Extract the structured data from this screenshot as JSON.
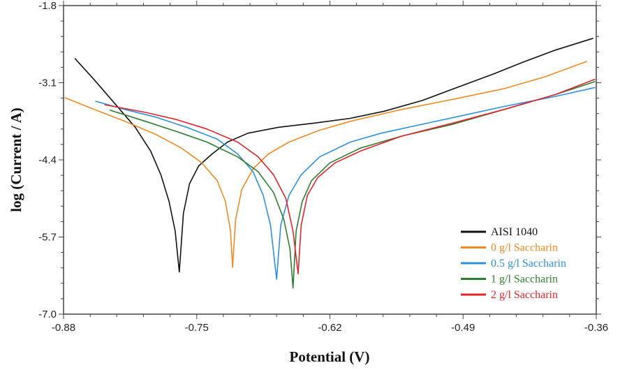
{
  "chart_data": {
    "type": "line",
    "title": "",
    "xlabel": "Potential (V)",
    "ylabel": "log (Current / A)",
    "xlim": [
      -0.88,
      -0.36
    ],
    "ylim": [
      -7.0,
      -1.8
    ],
    "xticks": [
      "-0.88",
      "-0.75",
      "-0.62",
      "-0.49",
      "-0.36"
    ],
    "yticks": [
      "-1.8",
      "-3.1",
      "-4.4",
      "-5.7",
      "-7.0"
    ],
    "grid": false,
    "legend_position": "bottom-right",
    "series": [
      {
        "name": "AISI 1040",
        "color": "#111111",
        "points": [
          [
            -0.869,
            -2.69
          ],
          [
            -0.85,
            -3.05
          ],
          [
            -0.83,
            -3.45
          ],
          [
            -0.81,
            -3.85
          ],
          [
            -0.795,
            -4.25
          ],
          [
            -0.785,
            -4.65
          ],
          [
            -0.777,
            -5.1
          ],
          [
            -0.771,
            -5.6
          ],
          [
            -0.767,
            -6.29
          ],
          [
            -0.763,
            -5.3
          ],
          [
            -0.757,
            -4.8
          ],
          [
            -0.748,
            -4.5
          ],
          [
            -0.735,
            -4.3
          ],
          [
            -0.72,
            -4.1
          ],
          [
            -0.7,
            -3.95
          ],
          [
            -0.67,
            -3.85
          ],
          [
            -0.635,
            -3.78
          ],
          [
            -0.6,
            -3.7
          ],
          [
            -0.567,
            -3.58
          ],
          [
            -0.53,
            -3.4
          ],
          [
            -0.499,
            -3.2
          ],
          [
            -0.46,
            -2.95
          ],
          [
            -0.431,
            -2.75
          ],
          [
            -0.4,
            -2.55
          ],
          [
            -0.363,
            -2.35
          ]
        ]
      },
      {
        "name": "0 g/l Saccharin",
        "color": "#f08a24",
        "points": [
          [
            -0.879,
            -3.35
          ],
          [
            -0.85,
            -3.55
          ],
          [
            -0.82,
            -3.75
          ],
          [
            -0.79,
            -3.97
          ],
          [
            -0.765,
            -4.2
          ],
          [
            -0.745,
            -4.45
          ],
          [
            -0.73,
            -4.75
          ],
          [
            -0.722,
            -5.1
          ],
          [
            -0.717,
            -5.6
          ],
          [
            -0.715,
            -6.21
          ],
          [
            -0.712,
            -5.4
          ],
          [
            -0.706,
            -4.9
          ],
          [
            -0.695,
            -4.55
          ],
          [
            -0.68,
            -4.3
          ],
          [
            -0.66,
            -4.1
          ],
          [
            -0.63,
            -3.9
          ],
          [
            -0.6,
            -3.75
          ],
          [
            -0.55,
            -3.55
          ],
          [
            -0.5,
            -3.38
          ],
          [
            -0.45,
            -3.2
          ],
          [
            -0.41,
            -3.0
          ],
          [
            -0.369,
            -2.74
          ]
        ]
      },
      {
        "name": "0.5 g/l Saccharin",
        "color": "#2f8fdc",
        "points": [
          [
            -0.849,
            -3.41
          ],
          [
            -0.82,
            -3.55
          ],
          [
            -0.79,
            -3.68
          ],
          [
            -0.76,
            -3.85
          ],
          [
            -0.73,
            -4.05
          ],
          [
            -0.71,
            -4.3
          ],
          [
            -0.695,
            -4.6
          ],
          [
            -0.685,
            -5.0
          ],
          [
            -0.678,
            -5.5
          ],
          [
            -0.672,
            -6.41
          ],
          [
            -0.668,
            -5.5
          ],
          [
            -0.66,
            -5.0
          ],
          [
            -0.648,
            -4.65
          ],
          [
            -0.63,
            -4.35
          ],
          [
            -0.6,
            -4.1
          ],
          [
            -0.57,
            -3.95
          ],
          [
            -0.53,
            -3.8
          ],
          [
            -0.49,
            -3.65
          ],
          [
            -0.45,
            -3.5
          ],
          [
            -0.4,
            -3.33
          ],
          [
            -0.361,
            -3.18
          ]
        ]
      },
      {
        "name": "1 g/l Saccharin",
        "color": "#2e7d2e",
        "points": [
          [
            -0.835,
            -3.56
          ],
          [
            -0.8,
            -3.75
          ],
          [
            -0.77,
            -3.92
          ],
          [
            -0.74,
            -4.1
          ],
          [
            -0.71,
            -4.35
          ],
          [
            -0.69,
            -4.6
          ],
          [
            -0.675,
            -4.95
          ],
          [
            -0.665,
            -5.4
          ],
          [
            -0.659,
            -5.9
          ],
          [
            -0.656,
            -6.56
          ],
          [
            -0.653,
            -5.6
          ],
          [
            -0.647,
            -5.1
          ],
          [
            -0.638,
            -4.75
          ],
          [
            -0.62,
            -4.45
          ],
          [
            -0.59,
            -4.2
          ],
          [
            -0.55,
            -4.0
          ],
          [
            -0.5,
            -3.8
          ],
          [
            -0.45,
            -3.55
          ],
          [
            -0.4,
            -3.3
          ],
          [
            -0.361,
            -3.08
          ]
        ]
      },
      {
        "name": "2 g/l Saccharin",
        "color": "#e0242c",
        "points": [
          [
            -0.84,
            -3.47
          ],
          [
            -0.8,
            -3.6
          ],
          [
            -0.77,
            -3.72
          ],
          [
            -0.74,
            -3.88
          ],
          [
            -0.71,
            -4.1
          ],
          [
            -0.69,
            -4.35
          ],
          [
            -0.675,
            -4.65
          ],
          [
            -0.663,
            -5.05
          ],
          [
            -0.656,
            -5.6
          ],
          [
            -0.651,
            -6.32
          ],
          [
            -0.648,
            -5.5
          ],
          [
            -0.642,
            -5.0
          ],
          [
            -0.632,
            -4.7
          ],
          [
            -0.615,
            -4.45
          ],
          [
            -0.59,
            -4.25
          ],
          [
            -0.55,
            -4.0
          ],
          [
            -0.5,
            -3.78
          ],
          [
            -0.45,
            -3.55
          ],
          [
            -0.4,
            -3.3
          ],
          [
            -0.361,
            -3.04
          ]
        ]
      }
    ]
  }
}
